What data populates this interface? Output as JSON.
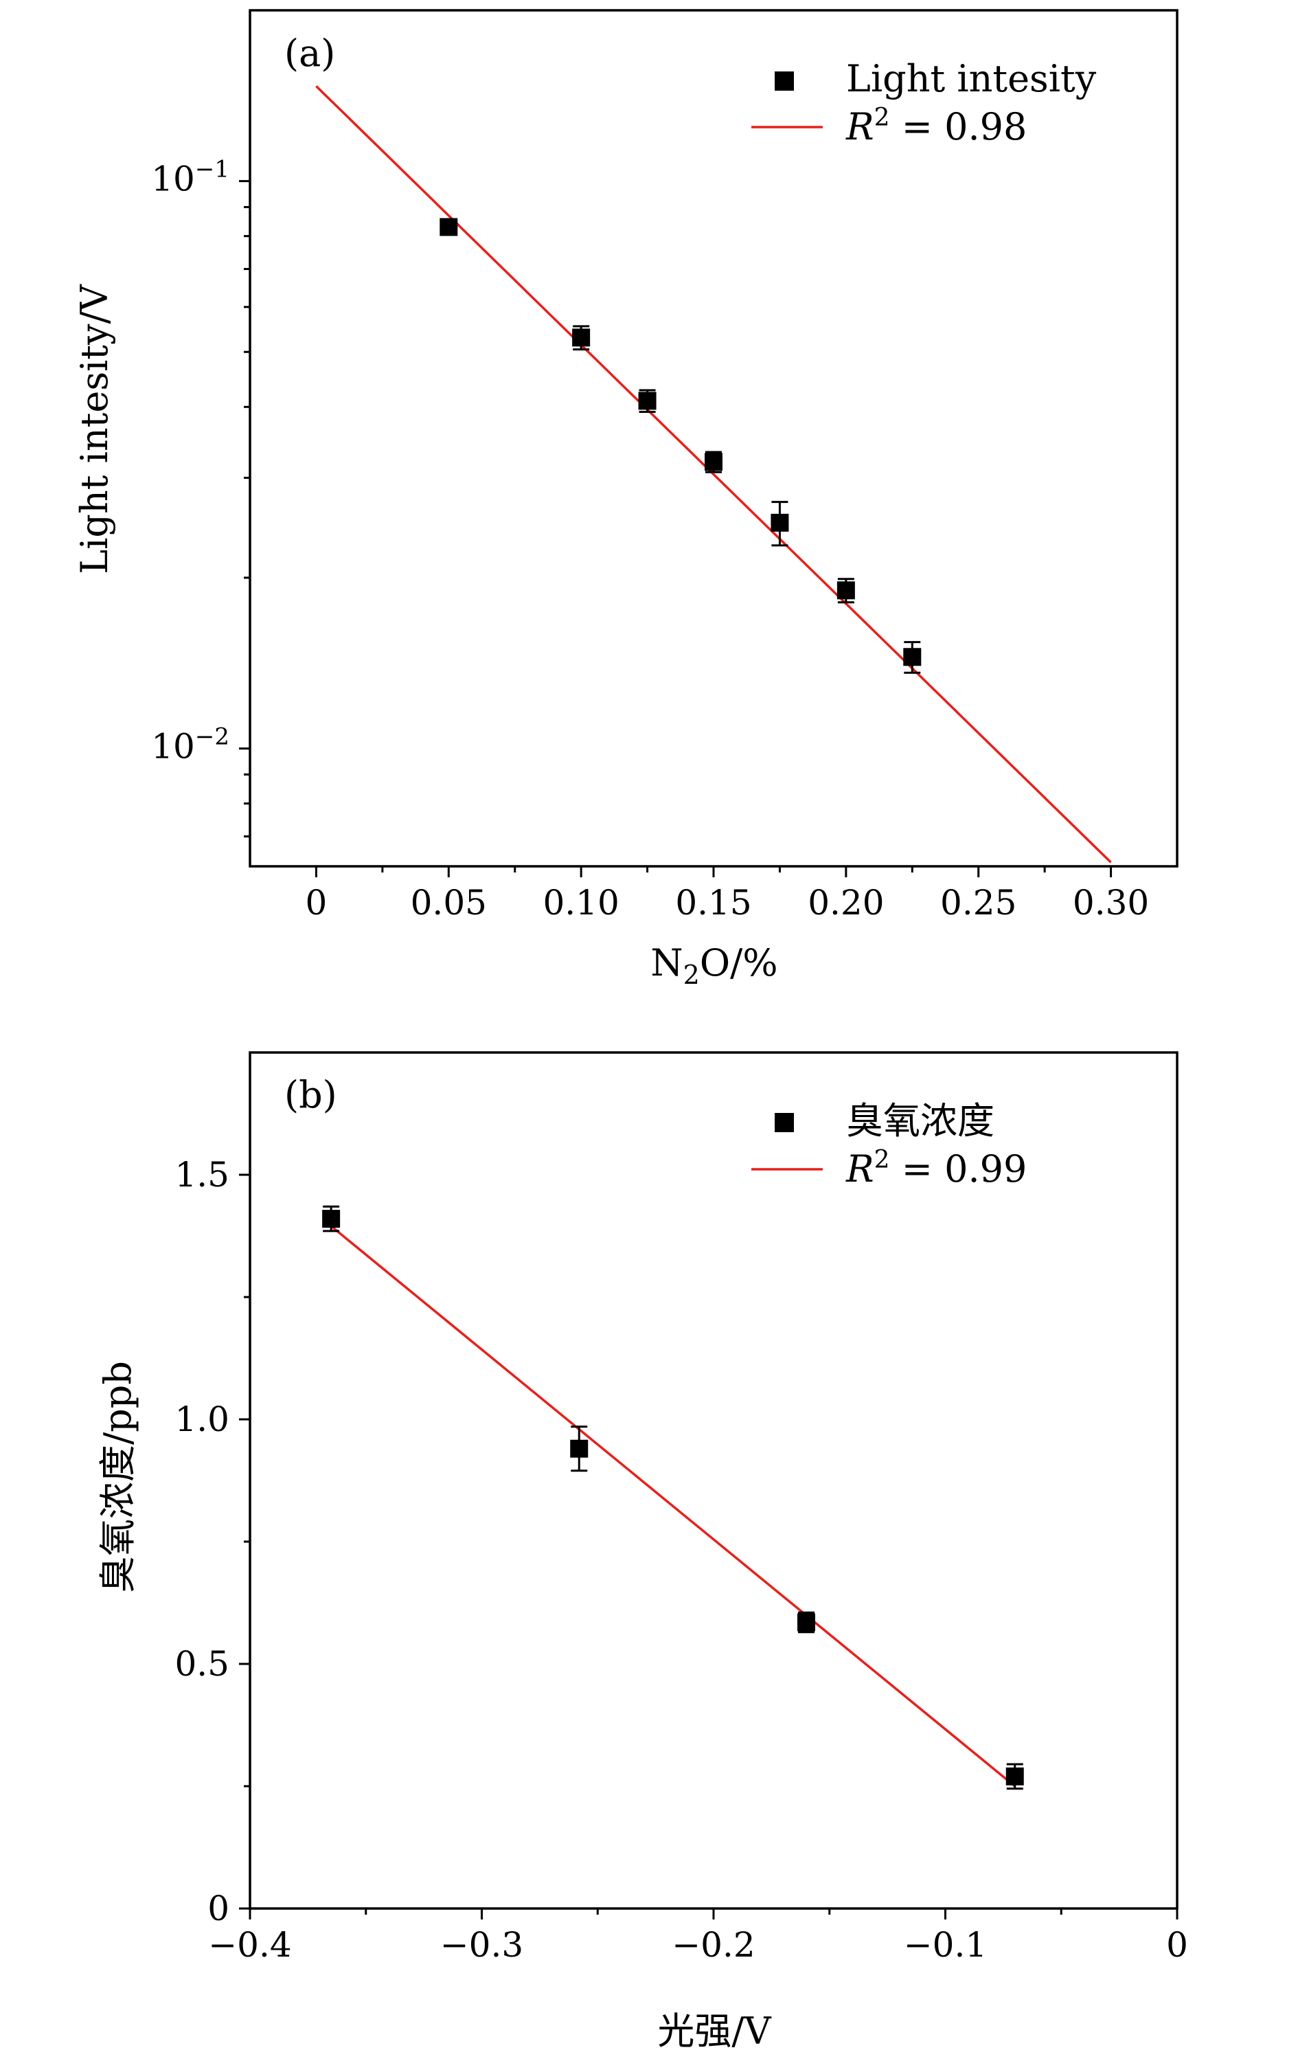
{
  "figure": {
    "panels": [
      {
        "label": "(a)",
        "legend": {
          "marker_label": "Light intesity",
          "fit_label_prefix": "R",
          "fit_label_sup": "2",
          "fit_label_value": " = 0.98"
        }
      },
      {
        "label": "(b)",
        "legend": {
          "marker_label": "臭氧浓度",
          "fit_label_prefix": "R",
          "fit_label_sup": "2",
          "fit_label_value": " = 0.99"
        }
      }
    ]
  },
  "chart_data": [
    {
      "type": "scatter",
      "title": "",
      "xlabel_main": "N",
      "xlabel_sub": "2",
      "xlabel_tail": "O/%",
      "ylabel": "Light intesity/V",
      "xlim": [
        -0.025,
        0.325
      ],
      "ylim": [
        0.0062,
        0.2
      ],
      "y_scale": "log",
      "x_ticks": [
        0,
        0.05,
        0.1,
        0.15,
        0.2,
        0.25,
        0.3
      ],
      "x_tick_labels": [
        "0",
        "0.05",
        "0.10",
        "0.15",
        "0.20",
        "0.25",
        "0.30"
      ],
      "y_major_ticks": [
        0.01,
        0.1
      ],
      "y_tick_labels": [
        {
          "base": "10",
          "exp": "−2"
        },
        {
          "base": "10",
          "exp": "−1"
        }
      ],
      "legend_position": "top-right",
      "grid": false,
      "series": [
        {
          "name": "Light intesity",
          "x": [
            0.05,
            0.1,
            0.125,
            0.15,
            0.175,
            0.2,
            0.225
          ],
          "y": [
            0.083,
            0.053,
            0.041,
            0.032,
            0.025,
            0.019,
            0.0145
          ],
          "y_err": [
            0.0015,
            0.0025,
            0.0018,
            0.0013,
            0.0022,
            0.0009,
            0.0009
          ],
          "color": "#000000"
        }
      ],
      "fit": {
        "x": [
          0,
          0.3
        ],
        "y": [
          0.147,
          0.0063
        ],
        "color": "#e8201a"
      }
    },
    {
      "type": "scatter",
      "title": "",
      "xlabel": "光强/V",
      "ylabel": "臭氧浓度/ppb",
      "xlim": [
        -0.4,
        0
      ],
      "ylim": [
        0,
        1.75
      ],
      "x_ticks": [
        -0.4,
        -0.3,
        -0.2,
        -0.1,
        0
      ],
      "x_tick_labels": [
        "−0.4",
        "−0.3",
        "−0.2",
        "−0.1",
        "0"
      ],
      "y_ticks": [
        0,
        0.5,
        1.0,
        1.5
      ],
      "y_tick_labels": [
        "0",
        "0.5",
        "1.0",
        "1.5"
      ],
      "legend_position": "top-right",
      "grid": false,
      "series": [
        {
          "name": "臭氧浓度",
          "x": [
            -0.365,
            -0.258,
            -0.16,
            -0.07
          ],
          "y": [
            1.41,
            0.94,
            0.585,
            0.27
          ],
          "y_err": [
            0.025,
            0.045,
            0.02,
            0.025
          ],
          "color": "#000000"
        }
      ],
      "fit": {
        "x": [
          -0.365,
          -0.07
        ],
        "y": [
          1.395,
          0.25
        ],
        "color": "#e8201a"
      }
    }
  ]
}
